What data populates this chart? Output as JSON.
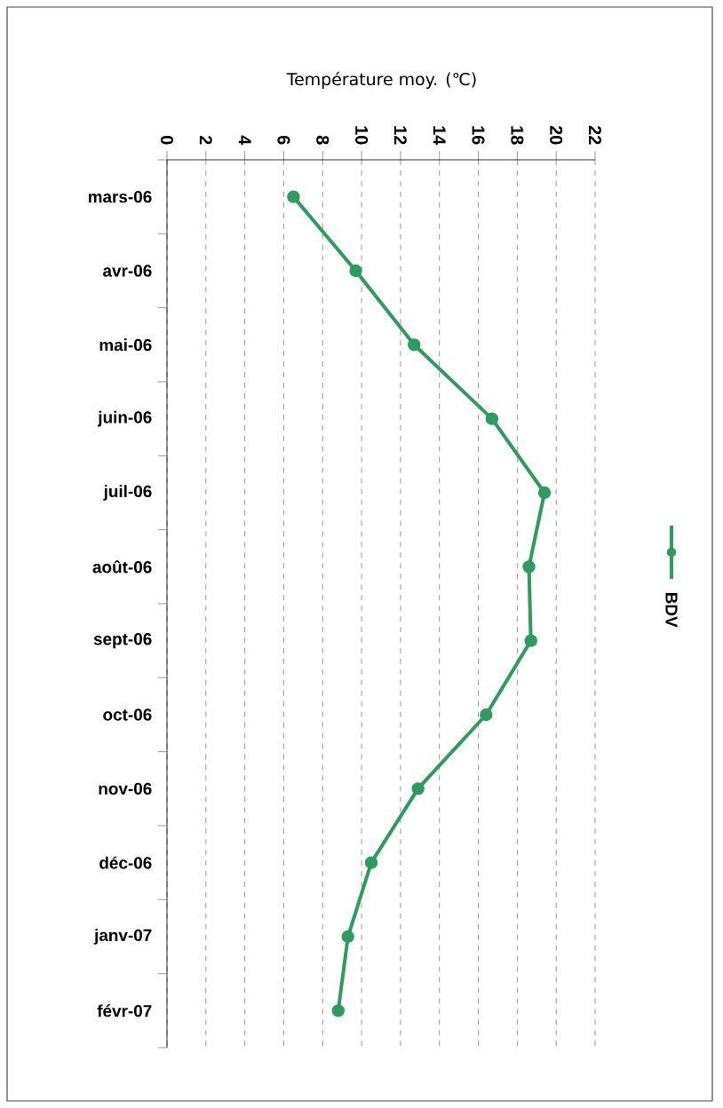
{
  "chart_data": {
    "type": "line",
    "orientation": "horizontal",
    "title": "Température moy. (℃)",
    "categories": [
      "mars-06",
      "avr-06",
      "mai-06",
      "juin-06",
      "juil-06",
      "août-06",
      "sept-06",
      "oct-06",
      "nov-06",
      "déc-06",
      "janv-07",
      "févr-07"
    ],
    "series": [
      {
        "name": "BDV",
        "color": "#2e9b5f",
        "values": [
          6.5,
          9.7,
          12.7,
          16.7,
          19.4,
          18.6,
          18.7,
          16.4,
          12.9,
          10.5,
          9.3,
          8.8
        ]
      }
    ],
    "xlim": [
      0,
      22
    ],
    "xticks": [
      0,
      2,
      4,
      6,
      8,
      10,
      12,
      14,
      16,
      18,
      20,
      22
    ],
    "grid": "x",
    "legend": "right",
    "marker": "circle"
  }
}
